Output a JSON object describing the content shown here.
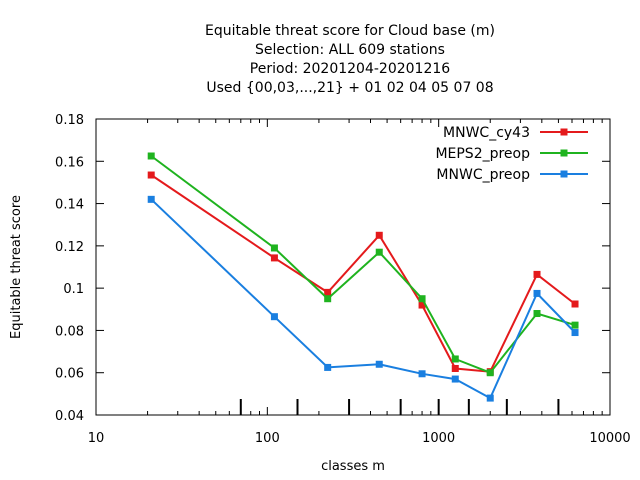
{
  "chart_data": {
    "type": "line",
    "title_lines": [
      "Equitable threat score  for Cloud base (m)",
      "Selection: ALL     609 stations",
      "Period: 20201204-20201216",
      "Used {00,03,...,21} + 01 02 04 05 07 08"
    ],
    "xlabel": "classes m",
    "ylabel": "Equitable threat score",
    "xscale": "log",
    "xlim": [
      10,
      10000
    ],
    "ylim": [
      0.04,
      0.18
    ],
    "x_ticks": [
      10,
      100,
      1000,
      10000
    ],
    "x_tick_labels": [
      "10",
      "100",
      "1000",
      "10000"
    ],
    "y_ticks": [
      0.04,
      0.06,
      0.08,
      0.1,
      0.12,
      0.14,
      0.16,
      0.18
    ],
    "y_tick_labels": [
      "0.04",
      "0.06",
      "0.08",
      "0.1",
      "0.12",
      "0.14",
      "0.16",
      "0.18"
    ],
    "class_thresholds": [
      70,
      150,
      300,
      600,
      1000,
      1500,
      2500,
      5000
    ],
    "grid": false,
    "legend_position": "top-right",
    "x": [
      21,
      110,
      225,
      450,
      800,
      1250,
      2000,
      3750,
      6250
    ],
    "series": [
      {
        "name": "MNWC_cy43",
        "color": "#e41a1c",
        "values": [
          0.1535,
          0.1143,
          0.098,
          0.125,
          0.092,
          0.062,
          0.0605,
          0.1065,
          0.0925
        ]
      },
      {
        "name": "MEPS2_preop",
        "color": "#1fb31f",
        "values": [
          0.1625,
          0.119,
          0.095,
          0.117,
          0.095,
          0.0665,
          0.06,
          0.088,
          0.0825
        ]
      },
      {
        "name": "MNWC_preop",
        "color": "#1a7fe0",
        "values": [
          0.142,
          0.0865,
          0.0625,
          0.064,
          0.0595,
          0.057,
          0.048,
          0.0975,
          0.079
        ]
      }
    ]
  }
}
